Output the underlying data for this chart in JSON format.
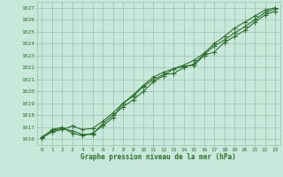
{
  "xlabel": "Graphe pression niveau de la mer (hPa)",
  "bg_color": "#c8e8dc",
  "grid_color": "#9dbfad",
  "line_color": "#2d6e2d",
  "ylim": [
    1015.5,
    1027.5
  ],
  "xlim": [
    -0.5,
    23.5
  ],
  "yticks": [
    1016,
    1017,
    1018,
    1019,
    1020,
    1021,
    1022,
    1023,
    1024,
    1025,
    1026,
    1027
  ],
  "xticks": [
    0,
    1,
    2,
    3,
    4,
    5,
    6,
    7,
    8,
    9,
    10,
    11,
    12,
    13,
    14,
    15,
    16,
    17,
    18,
    19,
    20,
    21,
    22,
    23
  ],
  "series1": [
    1016.1,
    1016.6,
    1016.8,
    1017.1,
    1016.8,
    1016.9,
    1017.5,
    1018.2,
    1019.0,
    1019.7,
    1020.5,
    1021.2,
    1021.6,
    1021.9,
    1022.1,
    1022.2,
    1023.0,
    1023.3,
    1024.1,
    1024.6,
    1025.1,
    1025.8,
    1026.4,
    1026.7
  ],
  "series2": [
    1016.1,
    1016.8,
    1017.0,
    1016.5,
    1016.3,
    1016.5,
    1017.1,
    1017.8,
    1019.0,
    1019.6,
    1020.4,
    1021.0,
    1021.4,
    1021.5,
    1022.0,
    1022.3,
    1023.1,
    1023.8,
    1024.3,
    1024.9,
    1025.4,
    1026.0,
    1026.6,
    1026.9
  ],
  "series3": [
    1016.2,
    1016.7,
    1016.9,
    1016.7,
    1016.4,
    1016.4,
    1017.3,
    1018.0,
    1018.7,
    1019.3,
    1020.0,
    1020.8,
    1021.3,
    1021.9,
    1022.2,
    1022.6,
    1023.2,
    1024.0,
    1024.6,
    1025.3,
    1025.8,
    1026.3,
    1026.8,
    1027.0
  ]
}
